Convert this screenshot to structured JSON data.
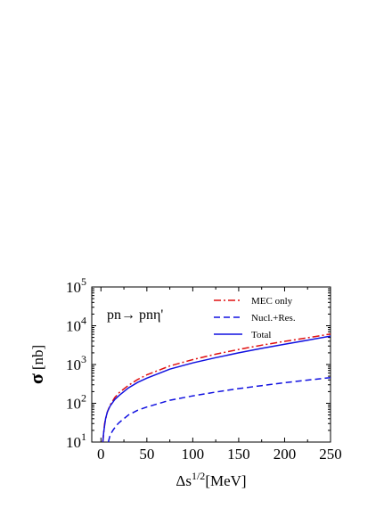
{
  "chart_data": {
    "type": "line",
    "title": "",
    "annotation": "pn→ pnη'",
    "xlabel": "Δs^1/2[MeV]",
    "xlabel_main": "Δs",
    "xlabel_sup": "1/2",
    "xlabel_unit": "[MeV]",
    "ylabel": "σ [nb]",
    "ylabel_symbol": "σ",
    "ylabel_unit": "[nb]",
    "xlim": [
      -10,
      250
    ],
    "ylim": [
      10,
      100000
    ],
    "yscale": "log",
    "grid": false,
    "legend_position": "top-right",
    "xticks": [
      0,
      50,
      100,
      150,
      200,
      250
    ],
    "xtick_labels": [
      "0",
      "50",
      "100",
      "150",
      "200",
      "250"
    ],
    "yticks": [
      10,
      100,
      1000,
      10000,
      100000
    ],
    "ytick_labels": [
      {
        "base": "10",
        "exp": "1"
      },
      {
        "base": "10",
        "exp": "2"
      },
      {
        "base": "10",
        "exp": "3"
      },
      {
        "base": "10",
        "exp": "4"
      },
      {
        "base": "10",
        "exp": "5"
      }
    ],
    "series": [
      {
        "name": "MEC only",
        "color": "#e01010",
        "style": "dash-dot",
        "x": [
          2,
          4,
          7,
          10,
          15,
          20,
          30,
          40,
          50,
          75,
          100,
          125,
          150,
          175,
          200,
          225,
          250
        ],
        "y": [
          10,
          30,
          60,
          90,
          140,
          190,
          290,
          410,
          540,
          920,
          1340,
          1850,
          2450,
          3150,
          3950,
          4900,
          6100
        ]
      },
      {
        "name": "Nucl.+Res.",
        "color": "#1010e0",
        "style": "dashed",
        "x": [
          8,
          10,
          13,
          17,
          20,
          30,
          40,
          50,
          75,
          100,
          125,
          150,
          175,
          200,
          225,
          250
        ],
        "y": [
          10,
          15,
          20,
          27,
          32,
          50,
          66,
          80,
          120,
          155,
          195,
          240,
          285,
          340,
          395,
          460
        ]
      },
      {
        "name": "Total",
        "color": "#1010e0",
        "style": "solid",
        "x": [
          2,
          3,
          5,
          7,
          10,
          15,
          20,
          30,
          40,
          50,
          75,
          100,
          125,
          150,
          175,
          200,
          225,
          250
        ],
        "y": [
          10,
          18,
          40,
          60,
          85,
          125,
          160,
          250,
          345,
          445,
          760,
          1100,
          1500,
          2000,
          2600,
          3350,
          4250,
          5400
        ]
      }
    ]
  }
}
